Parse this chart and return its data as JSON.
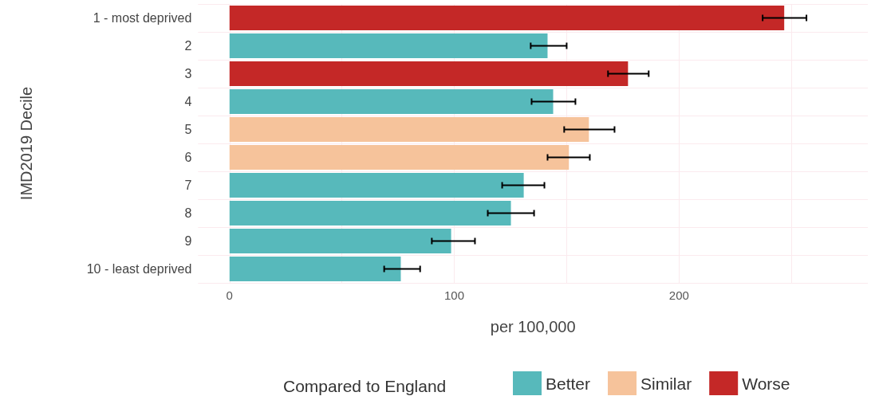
{
  "chart_data": {
    "type": "bar",
    "orientation": "horizontal",
    "xlabel": "per 100,000",
    "ylabel": "IMD2019 Decile",
    "legend_title": "Compared to England",
    "categories": [
      "1 - most deprived",
      "2",
      "3",
      "4",
      "5",
      "6",
      "7",
      "8",
      "9",
      "10 - least deprived"
    ],
    "series": [
      {
        "name": "Better",
        "color": "#57b9bb",
        "values": [
          null,
          141.5,
          null,
          144,
          null,
          null,
          130.9,
          125.2,
          98.6,
          76.2
        ],
        "errors": [
          null,
          [
            134,
            150
          ],
          null,
          [
            134.4,
            153.9
          ],
          null,
          null,
          [
            121.3,
            140.1
          ],
          [
            114.9,
            135.5
          ],
          [
            90,
            109.2
          ],
          [
            68.8,
            84.8
          ]
        ]
      },
      {
        "name": "Similar",
        "color": "#f6c39b",
        "values": [
          null,
          null,
          null,
          null,
          159.9,
          151,
          null,
          null,
          null,
          null
        ],
        "errors": [
          null,
          null,
          null,
          null,
          [
            148.9,
            171.3
          ],
          [
            141.5,
            160.3
          ],
          null,
          null,
          null,
          null
        ]
      },
      {
        "name": "Worse",
        "color": "#c42827",
        "values": [
          246.8,
          null,
          177.3,
          null,
          null,
          null,
          null,
          null,
          null,
          null
        ],
        "errors": [
          [
            237.2,
            256.7
          ],
          null,
          [
            168.4,
            186.5
          ],
          null,
          null,
          null,
          null,
          null,
          null,
          null
        ]
      }
    ],
    "xlim": [
      -14,
      284
    ],
    "xticks": [
      0,
      {
        "value": 50,
        "label": null
      },
      100,
      {
        "value": 150,
        "label": null
      },
      200,
      {
        "value": 250,
        "label": null
      }
    ],
    "grid": true,
    "legend": "bottom"
  }
}
